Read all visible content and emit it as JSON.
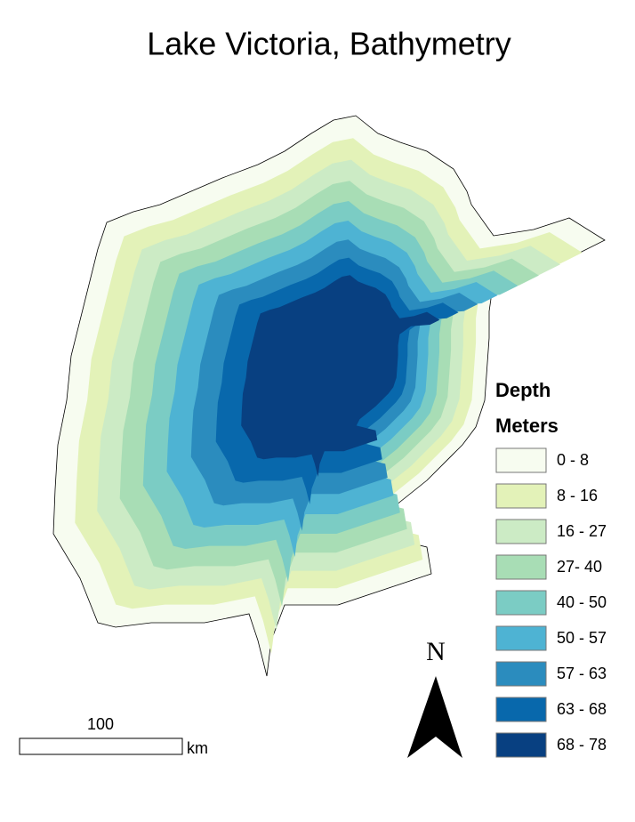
{
  "title": "Lake Victoria, Bathymetry",
  "legend": {
    "title": "Depth",
    "subtitle": "Meters",
    "items": [
      {
        "label": "0 - 8",
        "color": "#f7fcf0"
      },
      {
        "label": "8 - 16",
        "color": "#e3f2b8"
      },
      {
        "label": "16 - 27",
        "color": "#ccebc5"
      },
      {
        "label": "27- 40",
        "color": "#a8ddb5"
      },
      {
        "label": "40 - 50",
        "color": "#7bccc4"
      },
      {
        "label": "50 - 57",
        "color": "#4eb3d3"
      },
      {
        "label": "57 - 63",
        "color": "#2b8cbe"
      },
      {
        "label": "63 - 68",
        "color": "#0868ac"
      },
      {
        "label": "68 - 78",
        "color": "#084081"
      }
    ]
  },
  "scale_bar": {
    "label": "100",
    "unit": "km"
  },
  "north_arrow": {
    "label": "N"
  }
}
